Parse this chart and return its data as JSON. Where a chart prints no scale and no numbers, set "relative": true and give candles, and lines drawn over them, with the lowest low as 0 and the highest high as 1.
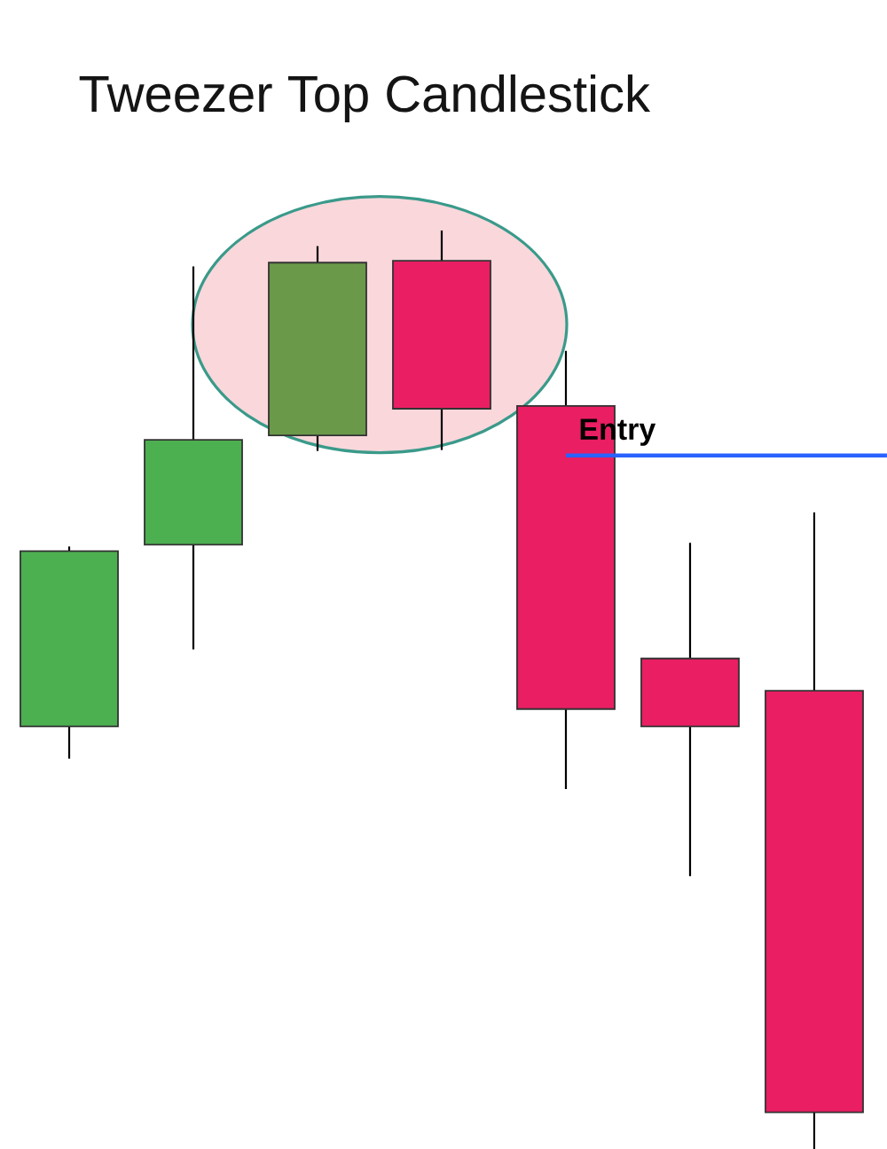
{
  "chart_data": {
    "type": "candlestick",
    "title": "Tweezer Top Candlestick",
    "relative": true,
    "categories": [
      null,
      null,
      null,
      null,
      null,
      null,
      null
    ],
    "ohlc": [
      [
        0.46,
        0.656,
        0.425,
        0.651
      ],
      [
        0.658,
        0.961,
        0.544,
        0.772
      ],
      [
        0.777,
        0.983,
        0.76,
        0.965
      ],
      [
        0.967,
        1.0,
        0.761,
        0.806
      ],
      [
        0.809,
        0.869,
        0.392,
        0.479
      ],
      [
        0.534,
        0.66,
        0.297,
        0.46
      ],
      [
        0.499,
        0.693,
        0.0,
        0.04
      ]
    ],
    "colors": [
      "#4caf50",
      "#4caf50",
      "#6a994a",
      "#e91e63",
      "#e91e63",
      "#e91e63",
      "#e91e63"
    ],
    "ref_lines": [
      {
        "axis": "y",
        "value": 0.755,
        "label": "Entry",
        "color": "#2962ff"
      }
    ]
  }
}
